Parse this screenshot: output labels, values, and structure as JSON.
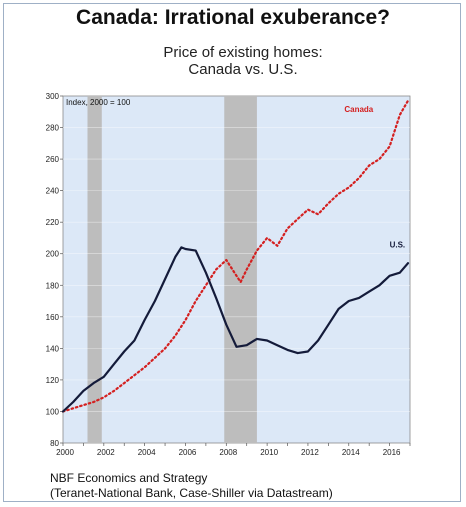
{
  "header": {
    "title": "Canada: Irrational exuberance?",
    "subtitle_line1": "Price of existing homes:",
    "subtitle_line2": "Canada vs. U.S."
  },
  "footer": {
    "source_line1": "NBF Economics and Strategy",
    "source_line2": "(Teranet-National Bank, Case-Shiller via Datastream)"
  },
  "colors": {
    "plot_background": "#dce8f7",
    "recession_band": "#bdbdbd",
    "canada": "#d42020",
    "us": "#141b3a"
  },
  "chart_data": {
    "type": "line",
    "title": "Canada: Irrational exuberance?",
    "subtitle": "Price of existing homes: Canada vs. U.S.",
    "note": "Index, 2000 = 100",
    "xlim": [
      2000,
      2017
    ],
    "ylim": [
      80,
      300
    ],
    "y_ticks": [
      80,
      100,
      120,
      140,
      160,
      180,
      200,
      220,
      240,
      260,
      280,
      300
    ],
    "x_ticks": [
      2000,
      2002,
      2004,
      2006,
      2008,
      2010,
      2012,
      2014,
      2016
    ],
    "recession_bands": [
      [
        2001.2,
        2001.9
      ],
      [
        2007.9,
        2009.5
      ]
    ],
    "series": [
      {
        "name": "Canada",
        "style": "dotted",
        "x": [
          2000,
          2000.5,
          2001,
          2001.5,
          2002,
          2002.5,
          2003,
          2003.5,
          2004,
          2004.5,
          2005,
          2005.5,
          2006,
          2006.5,
          2007,
          2007.5,
          2008,
          2008.3,
          2008.7,
          2009,
          2009.5,
          2010,
          2010.5,
          2011,
          2011.5,
          2012,
          2012.5,
          2013,
          2013.5,
          2014,
          2014.5,
          2015,
          2015.5,
          2016,
          2016.5,
          2016.9
        ],
        "values": [
          100,
          102,
          104,
          106,
          109,
          113,
          118,
          123,
          128,
          134,
          140,
          148,
          158,
          170,
          180,
          190,
          196,
          190,
          182,
          190,
          202,
          210,
          205,
          216,
          222,
          228,
          225,
          232,
          238,
          242,
          248,
          256,
          260,
          268,
          288,
          297
        ]
      },
      {
        "name": "U.S.",
        "style": "solid",
        "x": [
          2000,
          2000.5,
          2001,
          2001.5,
          2002,
          2002.5,
          2003,
          2003.5,
          2004,
          2004.5,
          2005,
          2005.5,
          2005.8,
          2006,
          2006.5,
          2007,
          2007.5,
          2008,
          2008.5,
          2009,
          2009.5,
          2010,
          2010.5,
          2011,
          2011.5,
          2012,
          2012.5,
          2013,
          2013.5,
          2014,
          2014.5,
          2015,
          2015.5,
          2016,
          2016.5,
          2016.9
        ],
        "values": [
          100,
          106,
          113,
          118,
          122,
          130,
          138,
          145,
          158,
          170,
          184,
          198,
          204,
          203,
          202,
          188,
          172,
          155,
          141,
          142,
          146,
          145,
          142,
          139,
          137,
          138,
          145,
          155,
          165,
          170,
          172,
          176,
          180,
          186,
          188,
          194
        ]
      }
    ],
    "series_labels": [
      "Canada",
      "U.S."
    ]
  }
}
